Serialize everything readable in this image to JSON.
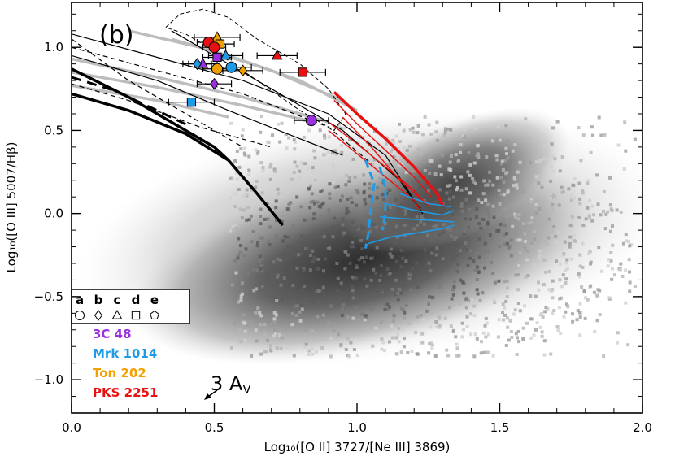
{
  "chart_data": {
    "type": "scatter",
    "panel_label": "(b)",
    "xlabel": "Log₁₀([O II] 3727/[Ne III] 3869)",
    "ylabel": "Log₁₀([O III] 5007/Hβ)",
    "xlim": [
      0.0,
      2.0
    ],
    "ylim": [
      -1.2,
      1.27
    ],
    "x_ticks": [
      {
        "value": 0.0,
        "label": "0.0"
      },
      {
        "value": 0.5,
        "label": "0.5"
      },
      {
        "value": 1.0,
        "label": "1.0"
      },
      {
        "value": 1.5,
        "label": "1.5"
      },
      {
        "value": 2.0,
        "label": "2.0"
      }
    ],
    "y_ticks": [
      {
        "value": 1.0,
        "label": "1.0"
      },
      {
        "value": 0.5,
        "label": "0.5"
      },
      {
        "value": 0.0,
        "label": "0.0"
      },
      {
        "value": -0.5,
        "label": "−0.5"
      },
      {
        "value": -1.0,
        "label": "−1.0"
      }
    ],
    "annotation": {
      "text": "3 A",
      "subscript": "V"
    },
    "legend": {
      "placement": "bottom-left",
      "apertures": [
        {
          "letter": "a",
          "marker": "circle"
        },
        {
          "letter": "b",
          "marker": "diamond"
        },
        {
          "letter": "c",
          "marker": "triangle"
        },
        {
          "letter": "d",
          "marker": "square"
        },
        {
          "letter": "e",
          "marker": "pentagon"
        }
      ],
      "objects": [
        {
          "name": "3C 48",
          "color": "#9b30e0"
        },
        {
          "name": "Mrk 1014",
          "color": "#1e9be8"
        },
        {
          "name": "Ton 202",
          "color": "#f2a000"
        },
        {
          "name": "PKS 2251",
          "color": "#e81010"
        }
      ]
    },
    "series": [
      {
        "name": "3C 48",
        "color": "#9b30e0",
        "points": [
          {
            "x": 0.84,
            "y": 0.56,
            "marker": "circle",
            "xerr": 0.06
          },
          {
            "x": 0.5,
            "y": 0.78,
            "marker": "diamond",
            "xerr": 0.06
          },
          {
            "x": 0.46,
            "y": 0.9,
            "marker": "triangle",
            "xerr": 0.05
          },
          {
            "x": 0.51,
            "y": 0.94,
            "marker": "square",
            "xerr": 0.05
          }
        ]
      },
      {
        "name": "Mrk 1014",
        "color": "#1e9be8",
        "points": [
          {
            "x": 0.56,
            "y": 0.88,
            "marker": "circle",
            "xerr": 0.07
          },
          {
            "x": 0.44,
            "y": 0.9,
            "marker": "diamond",
            "xerr": 0.05
          },
          {
            "x": 0.54,
            "y": 0.95,
            "marker": "triangle",
            "xerr": 0.06
          },
          {
            "x": 0.42,
            "y": 0.67,
            "marker": "square",
            "xerr": 0.08
          }
        ]
      },
      {
        "name": "Ton 202",
        "color": "#f2a000",
        "points": [
          {
            "x": 0.51,
            "y": 0.87,
            "marker": "circle",
            "xerr": 0.05
          },
          {
            "x": 0.6,
            "y": 0.86,
            "marker": "diamond",
            "xerr": 0.07
          },
          {
            "x": 0.51,
            "y": 1.06,
            "marker": "triangle",
            "xerr": 0.08
          },
          {
            "x": 0.52,
            "y": 1.02,
            "marker": "square",
            "xerr": 0.05
          }
        ]
      },
      {
        "name": "PKS 2251",
        "color": "#e81010",
        "points": [
          {
            "x": 0.48,
            "y": 1.03,
            "marker": "circle",
            "xerr": 0.04
          },
          {
            "x": 0.5,
            "y": 1.0,
            "marker": "circle",
            "xerr": 0.04
          },
          {
            "x": 0.72,
            "y": 0.95,
            "marker": "triangle",
            "xerr": 0.07
          },
          {
            "x": 0.81,
            "y": 0.85,
            "marker": "square",
            "xerr": 0.08
          }
        ]
      }
    ],
    "model_grids": {
      "black_thin": [
        [
          [
            0.0,
            1.08
          ],
          [
            0.3,
            0.94
          ],
          [
            0.6,
            0.8
          ],
          [
            0.9,
            0.6
          ],
          [
            1.1,
            0.35
          ],
          [
            1.23,
            0.0
          ]
        ],
        [
          [
            0.0,
            1.0
          ],
          [
            0.3,
            0.86
          ],
          [
            0.6,
            0.72
          ],
          [
            0.9,
            0.52
          ],
          [
            1.05,
            0.3
          ]
        ],
        [
          [
            0.0,
            0.95
          ],
          [
            0.3,
            0.8
          ],
          [
            0.55,
            0.62
          ],
          [
            0.8,
            0.45
          ],
          [
            0.95,
            0.35
          ]
        ],
        [
          [
            0.0,
            0.78
          ],
          [
            0.2,
            0.68
          ],
          [
            0.45,
            0.52
          ],
          [
            0.7,
            0.4
          ]
        ],
        [
          [
            0.35,
            1.1
          ],
          [
            0.5,
            0.95
          ],
          [
            0.7,
            0.75
          ],
          [
            0.95,
            0.5
          ],
          [
            1.15,
            0.2
          ],
          [
            1.23,
            0.0
          ]
        ],
        [
          [
            0.0,
            1.05
          ],
          [
            0.2,
            0.8
          ],
          [
            0.45,
            0.55
          ],
          [
            0.6,
            0.4
          ]
        ]
      ],
      "black_loop": [
        [
          0.33,
          1.12
        ],
        [
          0.38,
          1.2
        ],
        [
          0.46,
          1.23
        ],
        [
          0.55,
          1.18
        ],
        [
          0.65,
          1.05
        ],
        [
          0.8,
          0.9
        ],
        [
          0.9,
          0.75
        ],
        [
          0.96,
          0.6
        ],
        [
          0.92,
          0.5
        ],
        [
          0.8,
          0.62
        ],
        [
          0.65,
          0.8
        ],
        [
          0.5,
          0.98
        ],
        [
          0.4,
          1.08
        ],
        [
          0.33,
          1.12
        ]
      ],
      "black_thick": [
        [
          [
            0.0,
            0.72
          ],
          [
            0.2,
            0.62
          ],
          [
            0.4,
            0.48
          ],
          [
            0.55,
            0.32
          ],
          [
            0.65,
            0.12
          ],
          [
            0.74,
            -0.07
          ]
        ],
        [
          [
            0.0,
            0.87
          ],
          [
            0.2,
            0.7
          ],
          [
            0.35,
            0.55
          ],
          [
            0.5,
            0.4
          ],
          [
            0.55,
            0.32
          ]
        ]
      ],
      "black_thick_dashed": [
        [
          0.0,
          0.82
        ],
        [
          0.15,
          0.74
        ],
        [
          0.3,
          0.62
        ],
        [
          0.42,
          0.52
        ]
      ],
      "gray": [
        [
          [
            0.0,
            0.93
          ],
          [
            0.3,
            0.82
          ],
          [
            0.6,
            0.7
          ],
          [
            0.9,
            0.55
          ]
        ],
        [
          [
            0.0,
            0.85
          ],
          [
            0.3,
            0.76
          ],
          [
            0.6,
            0.65
          ],
          [
            0.85,
            0.55
          ]
        ],
        [
          [
            0.0,
            0.77
          ],
          [
            0.3,
            0.68
          ],
          [
            0.55,
            0.58
          ]
        ],
        [
          [
            0.35,
            1.05
          ],
          [
            0.55,
            0.95
          ],
          [
            0.8,
            0.8
          ],
          [
            1.0,
            0.62
          ]
        ],
        [
          [
            0.2,
            1.1
          ],
          [
            0.45,
            1.0
          ],
          [
            0.7,
            0.86
          ],
          [
            0.95,
            0.68
          ]
        ]
      ],
      "red": [
        [
          [
            0.92,
            0.73
          ],
          [
            1.0,
            0.6
          ],
          [
            1.1,
            0.45
          ],
          [
            1.2,
            0.28
          ],
          [
            1.28,
            0.12
          ],
          [
            1.3,
            0.05
          ]
        ],
        [
          [
            0.92,
            0.68
          ],
          [
            1.0,
            0.54
          ],
          [
            1.1,
            0.38
          ],
          [
            1.2,
            0.22
          ],
          [
            1.26,
            0.1
          ]
        ],
        [
          [
            0.9,
            0.55
          ],
          [
            1.0,
            0.42
          ],
          [
            1.1,
            0.28
          ],
          [
            1.2,
            0.14
          ],
          [
            1.24,
            0.06
          ]
        ],
        [
          [
            0.9,
            0.5
          ],
          [
            1.0,
            0.36
          ],
          [
            1.1,
            0.22
          ],
          [
            1.2,
            0.08
          ],
          [
            1.22,
            0.02
          ]
        ],
        [
          [
            0.95,
            0.58
          ],
          [
            1.05,
            0.4
          ],
          [
            1.15,
            0.2
          ],
          [
            1.25,
            0.05
          ]
        ]
      ],
      "blue": [
        [
          [
            1.03,
            0.32
          ],
          [
            1.06,
            0.18
          ],
          [
            1.05,
            0.05
          ],
          [
            1.04,
            -0.12
          ],
          [
            1.03,
            -0.21
          ]
        ],
        [
          [
            1.08,
            0.28
          ],
          [
            1.1,
            0.15
          ],
          [
            1.1,
            0.02
          ],
          [
            1.09,
            -0.1
          ]
        ],
        [
          [
            1.04,
            -0.18
          ],
          [
            1.12,
            -0.14
          ],
          [
            1.2,
            -0.12
          ],
          [
            1.3,
            -0.09
          ],
          [
            1.34,
            -0.07
          ]
        ],
        [
          [
            1.08,
            -0.02
          ],
          [
            1.15,
            -0.03
          ],
          [
            1.25,
            -0.04
          ],
          [
            1.34,
            -0.05
          ]
        ],
        [
          [
            1.1,
            0.06
          ],
          [
            1.2,
            0.02
          ],
          [
            1.3,
            -0.01
          ],
          [
            1.34,
            0.02
          ]
        ],
        [
          [
            1.15,
            0.12
          ],
          [
            1.25,
            0.06
          ],
          [
            1.33,
            0.04
          ]
        ]
      ]
    }
  }
}
